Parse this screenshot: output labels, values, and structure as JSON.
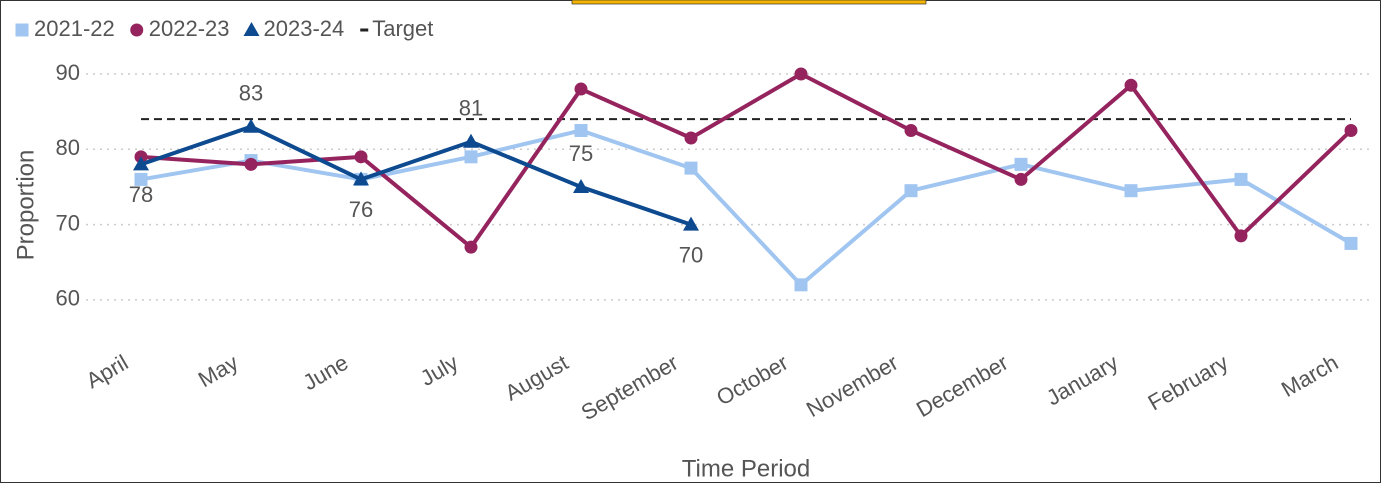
{
  "chart_data": {
    "type": "line",
    "x_label": "Time Period",
    "y_label": "Proportion",
    "categories": [
      "April",
      "May",
      "June",
      "July",
      "August",
      "September",
      "October",
      "November",
      "December",
      "January",
      "February",
      "March"
    ],
    "ylim": [
      56,
      90
    ],
    "yticks": [
      60,
      70,
      80,
      90
    ],
    "grid": true,
    "legend": "top-left",
    "series": [
      {
        "name": "2021-22",
        "color": "#9fc5f0",
        "marker": "square",
        "values": [
          76,
          78.5,
          76,
          79,
          82.5,
          77.5,
          62,
          74.5,
          78,
          74.5,
          76,
          67.5
        ]
      },
      {
        "name": "2022-23",
        "color": "#95245e",
        "marker": "circle",
        "values": [
          79,
          78,
          79,
          67,
          88,
          81.5,
          90,
          82.5,
          76,
          88.5,
          68.5,
          82.5
        ]
      },
      {
        "name": "2023-24",
        "color": "#0d4a8f",
        "marker": "triangle",
        "data_labels": true,
        "values": [
          78,
          83,
          76,
          81,
          75,
          70,
          null,
          null,
          null,
          null,
          null,
          null
        ]
      }
    ],
    "target": {
      "name": "Target",
      "value": 84,
      "color": "#222"
    }
  }
}
